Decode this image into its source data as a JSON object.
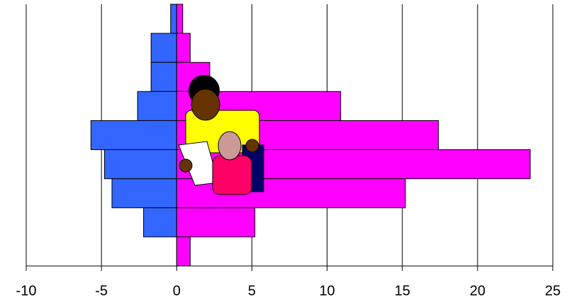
{
  "chart_data": {
    "type": "hbar",
    "categories": [
      null,
      null,
      null,
      null,
      null,
      null,
      null,
      null,
      null
    ],
    "series": [
      {
        "color": "#3366ff",
        "values": [
          -0.4,
          -1.7,
          -1.7,
          -2.6,
          -5.7,
          -4.8,
          -4.3,
          -2.2,
          0
        ]
      },
      {
        "color": "#ff00ff",
        "values": [
          0.4,
          0.9,
          2.2,
          10.9,
          17.4,
          23.5,
          15.2,
          5.2,
          0.9
        ]
      }
    ],
    "xlim": [
      -10,
      25
    ],
    "xticks": [
      -10,
      -5,
      0,
      5,
      10,
      15,
      20,
      25
    ],
    "grid": true
  }
}
